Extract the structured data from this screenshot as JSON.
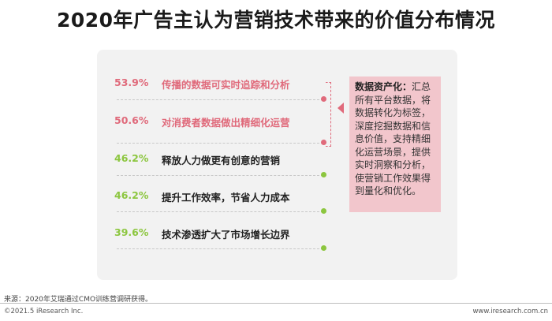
{
  "title": "2020年广告主认为营销技术带来的价值分布情况",
  "chart_data": {
    "type": "table",
    "items": [
      {
        "value": "53.9%",
        "label": "传播的数据可实时追踪和分析",
        "color": "#e06a7b"
      },
      {
        "value": "50.6%",
        "label": "对消费者数据做出精细化运营",
        "color": "#e06a7b"
      },
      {
        "value": "46.2%",
        "label": "释放人力做更有创意的营销",
        "color": "#8cc63f"
      },
      {
        "value": "46.2%",
        "label": "提升工作效率，节省人力成本",
        "color": "#8cc63f"
      },
      {
        "value": "39.6%",
        "label": "技术渗透扩大了市场增长边界",
        "color": "#8cc63f"
      }
    ]
  },
  "callout": {
    "head": "数据资产化：",
    "body": "汇总所有平台数据，将数据转化为标签，深度挖掘数据和信息价值，支持精细化运营场景，提供实时洞察和分析，使营销工作效果得到量化和优化。"
  },
  "footer": {
    "source": "来源：2020年艾瑞通过CMO训练营调研获得。",
    "copyright": "©2021.5 iResearch Inc.",
    "website": "www.iresearch.com.cn"
  }
}
